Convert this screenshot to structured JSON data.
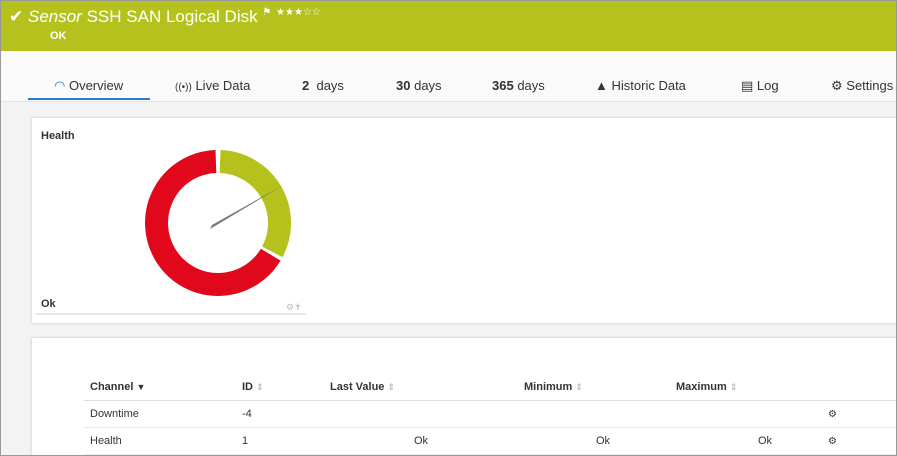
{
  "header": {
    "kind": "Sensor",
    "title": "SSH SAN Logical Disk",
    "status": "OK"
  },
  "tabs": [
    {
      "label": "Overview"
    },
    {
      "label": "Live Data"
    },
    {
      "num": "2",
      "unit": "days"
    },
    {
      "num": "30",
      "unit": "days"
    },
    {
      "num": "365",
      "unit": "days"
    },
    {
      "label": "Historic Data"
    },
    {
      "label": "Log"
    },
    {
      "label": "Settings"
    }
  ],
  "gauge": {
    "title": "Health",
    "value": "Ok"
  },
  "table": {
    "columns": [
      "Channel",
      "ID",
      "Last Value",
      "Minimum",
      "Maximum"
    ],
    "rows": [
      {
        "channel": "Downtime",
        "id": -4
      },
      {
        "channel": "Health",
        "id": 1,
        "last_value": "Ok",
        "minimum": "Ok",
        "maximum": "Ok"
      }
    ]
  }
}
